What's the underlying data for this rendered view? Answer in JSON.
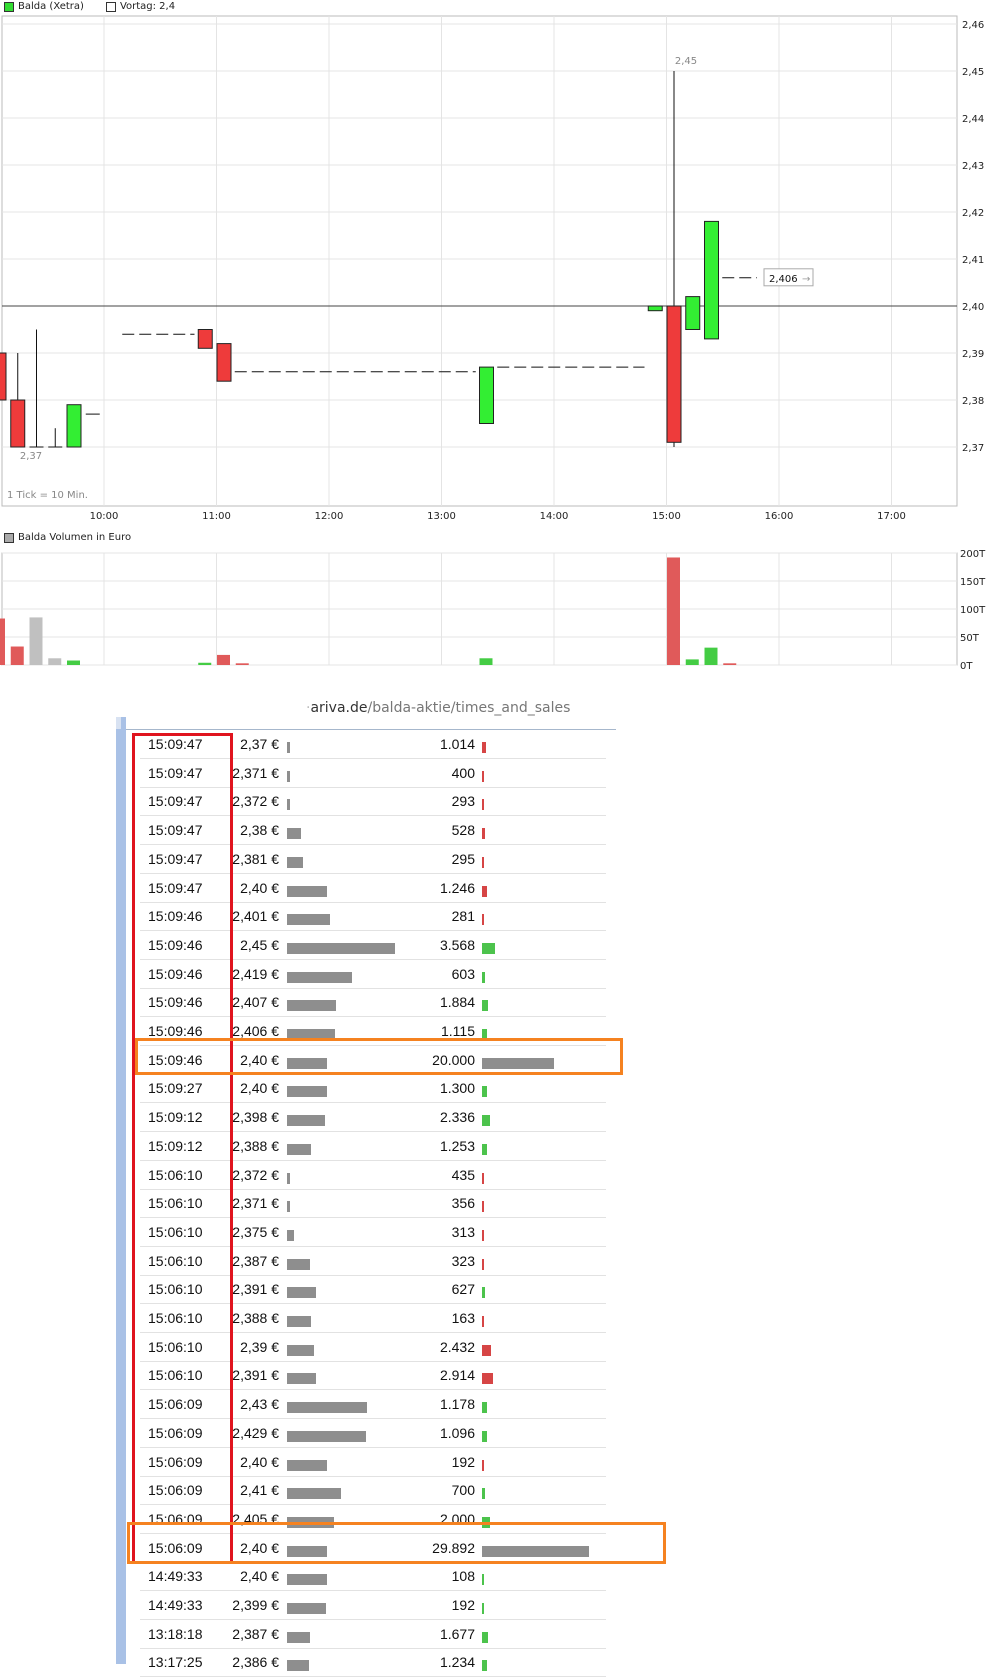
{
  "chart_data": [
    {
      "type": "candlestick",
      "legend": [
        {
          "label": "Balda (Xetra)",
          "color": "#33dd33"
        },
        {
          "label": "Vortag: 2,4",
          "color": "#ffffff"
        }
      ],
      "note": "1 Tick = 10 Min.",
      "x_ticks": [
        "10:00",
        "11:00",
        "12:00",
        "13:00",
        "14:00",
        "15:00",
        "16:00",
        "17:00"
      ],
      "y_ticks": [
        "2,46",
        "2,45",
        "2,44",
        "2,43",
        "2,42",
        "2,41",
        "2,40",
        "2,39",
        "2,38",
        "2,37"
      ],
      "ylim": [
        2.36,
        2.46
      ],
      "reference_line": 2.4,
      "labels": {
        "low": "2,37",
        "high": "2,45",
        "last": "2,406"
      },
      "candles": [
        {
          "time": "09:04",
          "open": 2.39,
          "high": 2.395,
          "low": 2.38,
          "close": 2.38,
          "color": "red"
        },
        {
          "time": "09:14",
          "open": 2.38,
          "high": 2.39,
          "low": 2.37,
          "close": 2.37,
          "color": "red"
        },
        {
          "time": "09:24",
          "open": 2.37,
          "high": 2.395,
          "low": 2.37,
          "close": 2.37,
          "color": "flat"
        },
        {
          "time": "09:34",
          "open": 2.37,
          "high": 2.374,
          "low": 2.37,
          "close": 2.37,
          "color": "flat"
        },
        {
          "time": "09:44",
          "open": 2.37,
          "high": 2.379,
          "low": 2.37,
          "close": 2.379,
          "color": "green"
        },
        {
          "time": "09:54",
          "open": 2.377,
          "high": 2.377,
          "low": 2.377,
          "close": 2.377,
          "color": "flat"
        },
        {
          "time": "10:14-10:44",
          "open": 2.394,
          "high": 2.394,
          "low": 2.394,
          "close": 2.394,
          "color": "flat"
        },
        {
          "time": "10:54",
          "open": 2.395,
          "high": 2.395,
          "low": 2.391,
          "close": 2.391,
          "color": "red"
        },
        {
          "time": "11:04",
          "open": 2.392,
          "high": 2.392,
          "low": 2.384,
          "close": 2.384,
          "color": "red"
        },
        {
          "time": "11:14-13:14",
          "open": 2.386,
          "high": 2.386,
          "low": 2.386,
          "close": 2.386,
          "color": "flat"
        },
        {
          "time": "13:24",
          "open": 2.375,
          "high": 2.387,
          "low": 2.375,
          "close": 2.387,
          "color": "green"
        },
        {
          "time": "13:34-14:44",
          "open": 2.387,
          "high": 2.387,
          "low": 2.387,
          "close": 2.387,
          "color": "flat"
        },
        {
          "time": "14:54",
          "open": 2.399,
          "high": 2.4,
          "low": 2.399,
          "close": 2.4,
          "color": "green"
        },
        {
          "time": "15:04",
          "open": 2.4,
          "high": 2.45,
          "low": 2.37,
          "close": 2.371,
          "color": "red"
        },
        {
          "time": "15:14",
          "open": 2.395,
          "high": 2.402,
          "low": 2.395,
          "close": 2.402,
          "color": "green"
        },
        {
          "time": "15:24",
          "open": 2.393,
          "high": 2.418,
          "low": 2.393,
          "close": 2.418,
          "color": "green"
        },
        {
          "time": "15:34-15:44",
          "open": 2.406,
          "high": 2.406,
          "low": 2.406,
          "close": 2.406,
          "color": "flat"
        }
      ]
    },
    {
      "type": "bar",
      "legend": [
        {
          "label": "Balda Volumen in Euro",
          "color": "#aaaaaa"
        }
      ],
      "y_ticks": [
        "200T",
        "150T",
        "100T",
        "50T",
        "0T"
      ],
      "ylim": [
        0,
        200
      ],
      "bars": [
        {
          "time": "09:04",
          "value": 83,
          "color": "#e05a5a"
        },
        {
          "time": "09:14",
          "value": 33,
          "color": "#e05a5a"
        },
        {
          "time": "09:24",
          "value": 85,
          "color": "#c0c0c0"
        },
        {
          "time": "09:34",
          "value": 12,
          "color": "#c0c0c0"
        },
        {
          "time": "09:44",
          "value": 8,
          "color": "#44cc44"
        },
        {
          "time": "10:54",
          "value": 4,
          "color": "#44cc44"
        },
        {
          "time": "11:04",
          "value": 18,
          "color": "#e05a5a"
        },
        {
          "time": "11:14",
          "value": 3,
          "color": "#e05a5a"
        },
        {
          "time": "13:24",
          "value": 12,
          "color": "#44cc44"
        },
        {
          "time": "15:04",
          "value": 192,
          "color": "#e05a5a"
        },
        {
          "time": "15:14",
          "value": 10,
          "color": "#44cc44"
        },
        {
          "time": "15:24",
          "value": 31,
          "color": "#44cc44"
        },
        {
          "time": "15:34",
          "value": 3,
          "color": "#e05a5a"
        }
      ]
    }
  ],
  "times_and_sales": {
    "url_prefix": "ariva.de",
    "url_path": "/balda-aktie/times_and_sales",
    "colors": {
      "up": "#4cc34c",
      "down": "#d64545",
      "neutral": "#8e8e8e"
    },
    "rows": [
      {
        "time": "15:09:47",
        "price": "2,37 €",
        "price_bar": 3,
        "volume": "1.014",
        "vol_bar": 4,
        "dir": "down"
      },
      {
        "time": "15:09:47",
        "price": "2,371 €",
        "price_bar": 3,
        "volume": "400",
        "vol_bar": 2,
        "dir": "down"
      },
      {
        "time": "15:09:47",
        "price": "2,372 €",
        "price_bar": 3,
        "volume": "293",
        "vol_bar": 2,
        "dir": "down"
      },
      {
        "time": "15:09:47",
        "price": "2,38 €",
        "price_bar": 14,
        "volume": "528",
        "vol_bar": 3,
        "dir": "down"
      },
      {
        "time": "15:09:47",
        "price": "2,381 €",
        "price_bar": 16,
        "volume": "295",
        "vol_bar": 2,
        "dir": "down"
      },
      {
        "time": "15:09:47",
        "price": "2,40 €",
        "price_bar": 40,
        "volume": "1.246",
        "vol_bar": 5,
        "dir": "down"
      },
      {
        "time": "15:09:46",
        "price": "2,401 €",
        "price_bar": 43,
        "volume": "281",
        "vol_bar": 2,
        "dir": "down"
      },
      {
        "time": "15:09:46",
        "price": "2,45 €",
        "price_bar": 108,
        "volume": "3.568",
        "vol_bar": 13,
        "dir": "up"
      },
      {
        "time": "15:09:46",
        "price": "2,419 €",
        "price_bar": 65,
        "volume": "603",
        "vol_bar": 3,
        "dir": "up"
      },
      {
        "time": "15:09:46",
        "price": "2,407 €",
        "price_bar": 49,
        "volume": "1.884",
        "vol_bar": 6,
        "dir": "up"
      },
      {
        "time": "15:09:46",
        "price": "2,406 €",
        "price_bar": 48,
        "volume": "1.115",
        "vol_bar": 5,
        "dir": "up"
      },
      {
        "time": "15:09:46",
        "price": "2,40 €",
        "price_bar": 40,
        "volume": "20.000",
        "vol_bar": 72,
        "dir": "neutral"
      },
      {
        "time": "15:09:27",
        "price": "2,40 €",
        "price_bar": 40,
        "volume": "1.300",
        "vol_bar": 5,
        "dir": "up"
      },
      {
        "time": "15:09:12",
        "price": "2,398 €",
        "price_bar": 38,
        "volume": "2.336",
        "vol_bar": 8,
        "dir": "up"
      },
      {
        "time": "15:09:12",
        "price": "2,388 €",
        "price_bar": 24,
        "volume": "1.253",
        "vol_bar": 5,
        "dir": "up"
      },
      {
        "time": "15:06:10",
        "price": "2,372 €",
        "price_bar": 3,
        "volume": "435",
        "vol_bar": 2,
        "dir": "down"
      },
      {
        "time": "15:06:10",
        "price": "2,371 €",
        "price_bar": 3,
        "volume": "356",
        "vol_bar": 2,
        "dir": "down"
      },
      {
        "time": "15:06:10",
        "price": "2,375 €",
        "price_bar": 7,
        "volume": "313",
        "vol_bar": 2,
        "dir": "down"
      },
      {
        "time": "15:06:10",
        "price": "2,387 €",
        "price_bar": 23,
        "volume": "323",
        "vol_bar": 2,
        "dir": "down"
      },
      {
        "time": "15:06:10",
        "price": "2,391 €",
        "price_bar": 29,
        "volume": "627",
        "vol_bar": 3,
        "dir": "up"
      },
      {
        "time": "15:06:10",
        "price": "2,388 €",
        "price_bar": 24,
        "volume": "163",
        "vol_bar": 2,
        "dir": "down"
      },
      {
        "time": "15:06:10",
        "price": "2,39 €",
        "price_bar": 27,
        "volume": "2.432",
        "vol_bar": 9,
        "dir": "down"
      },
      {
        "time": "15:06:10",
        "price": "2,391 €",
        "price_bar": 29,
        "volume": "2.914",
        "vol_bar": 11,
        "dir": "down"
      },
      {
        "time": "15:06:09",
        "price": "2,43 €",
        "price_bar": 80,
        "volume": "1.178",
        "vol_bar": 5,
        "dir": "up"
      },
      {
        "time": "15:06:09",
        "price": "2,429 €",
        "price_bar": 79,
        "volume": "1.096",
        "vol_bar": 5,
        "dir": "up"
      },
      {
        "time": "15:06:09",
        "price": "2,40 €",
        "price_bar": 40,
        "volume": "192",
        "vol_bar": 2,
        "dir": "down"
      },
      {
        "time": "15:06:09",
        "price": "2,41 €",
        "price_bar": 54,
        "volume": "700",
        "vol_bar": 3,
        "dir": "up"
      },
      {
        "time": "15:06:09",
        "price": "2,405 €",
        "price_bar": 47,
        "volume": "2.000",
        "vol_bar": 8,
        "dir": "up"
      },
      {
        "time": "15:06:09",
        "price": "2,40 €",
        "price_bar": 40,
        "volume": "29.892",
        "vol_bar": 107,
        "dir": "neutral"
      },
      {
        "time": "14:49:33",
        "price": "2,40 €",
        "price_bar": 40,
        "volume": "108",
        "vol_bar": 2,
        "dir": "up"
      },
      {
        "time": "14:49:33",
        "price": "2,399 €",
        "price_bar": 39,
        "volume": "192",
        "vol_bar": 2,
        "dir": "up"
      },
      {
        "time": "13:18:18",
        "price": "2,387 €",
        "price_bar": 23,
        "volume": "1.677",
        "vol_bar": 6,
        "dir": "up"
      },
      {
        "time": "13:17:25",
        "price": "2,386 €",
        "price_bar": 22,
        "volume": "1.234",
        "vol_bar": 5,
        "dir": "up"
      }
    ]
  }
}
